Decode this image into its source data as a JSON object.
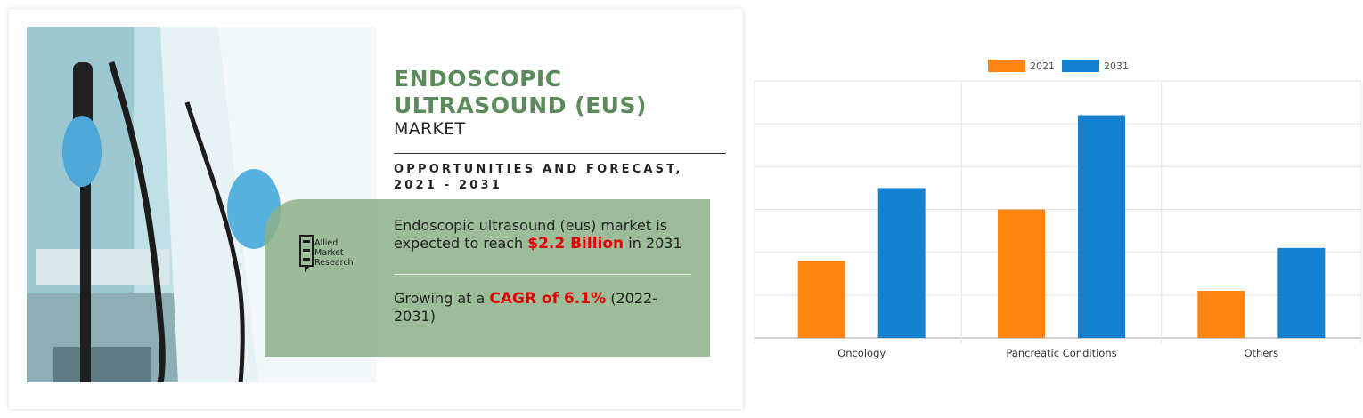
{
  "infographic": {
    "title_line1": "ENDOSCOPIC",
    "title_line2": "ULTRASOUND (EUS)",
    "title_sub": "MARKET",
    "forecast": "OPPORTUNITIES AND FORECAST, 2021 - 2031",
    "stat1_pre": "Endoscopic ultrasound (eus) market is expected to reach ",
    "stat1_highlight": "$2.2 Billion",
    "stat1_post": " in 2031",
    "stat2_pre": "Growing at a ",
    "stat2_highlight": "CAGR of 6.1%",
    "stat2_post": " (2022-2031)",
    "logo_line1": "Allied",
    "logo_line2": "Market",
    "logo_line3": "Research",
    "title_color": "#5b8a5b",
    "highlight_color": "#e00000"
  },
  "chart_data": {
    "type": "bar",
    "categories": [
      "Oncology",
      "Pancreatic Conditions",
      "Others"
    ],
    "series": [
      {
        "name": "2021",
        "color": "#ff8412",
        "values": [
          1.8,
          3.0,
          1.1
        ]
      },
      {
        "name": "2031",
        "color": "#1480d0",
        "values": [
          3.5,
          5.2,
          2.1
        ]
      }
    ],
    "ylim": [
      0,
      6
    ],
    "grid": true,
    "legend": "top-center"
  }
}
